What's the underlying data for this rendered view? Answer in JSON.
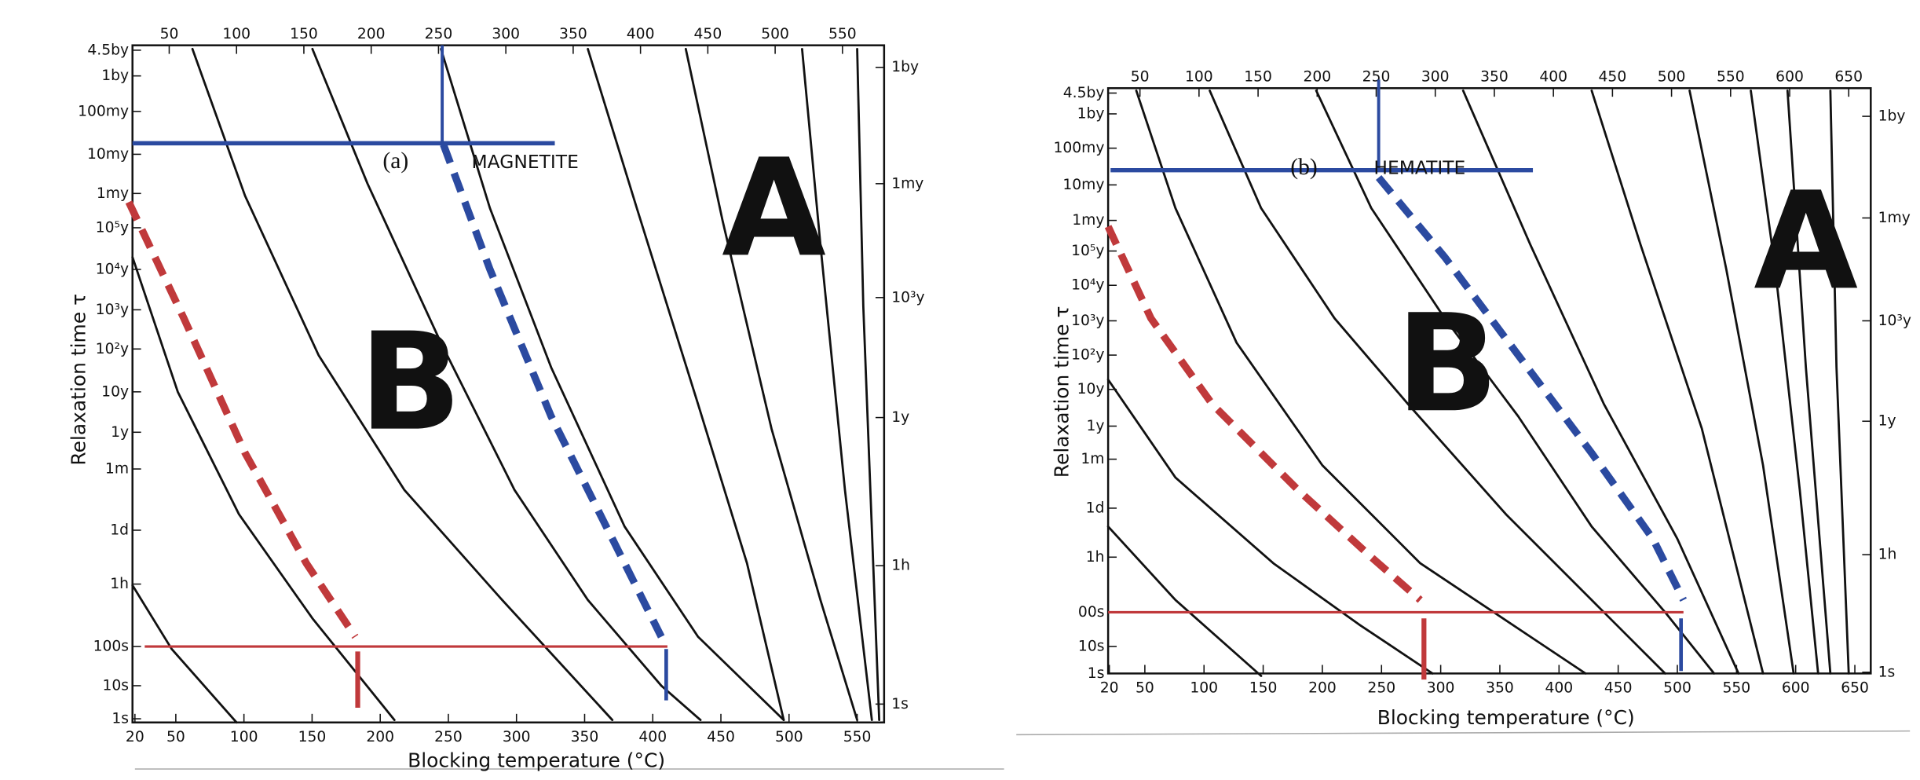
{
  "panels": [
    {
      "label": "(a)",
      "mineral": "MAGNETITE",
      "region_a": "A",
      "region_b": "B",
      "y_axis_title": "Relaxation time τ",
      "x_axis_title": "Blocking temperature (°C)",
      "top_ticks": [
        50,
        100,
        150,
        200,
        250,
        300,
        350,
        400,
        450,
        500,
        550
      ],
      "bottom_ticks": [
        20,
        50,
        100,
        150,
        200,
        250,
        300,
        350,
        400,
        450,
        500,
        550
      ],
      "left_ticks": [
        "4.5by",
        "1by",
        "100my",
        "10my",
        "1my",
        "10⁵y",
        "10⁴y",
        "10³y",
        "10²y",
        "10y",
        "1y",
        "1m",
        "1d",
        "1h",
        "100s",
        "10s",
        "1s"
      ],
      "right_ticks": [
        "1by",
        "1my",
        "10³y",
        "1y",
        "1h",
        "1s"
      ]
    },
    {
      "label": "(b)",
      "mineral": "HEMATITE",
      "region_a": "A",
      "region_b": "B",
      "y_axis_title": "Relaxation time τ",
      "x_axis_title": "Blocking temperature (°C)",
      "top_ticks": [
        50,
        100,
        150,
        200,
        250,
        300,
        350,
        400,
        450,
        500,
        550,
        600,
        650
      ],
      "bottom_ticks": [
        20,
        50,
        100,
        150,
        200,
        250,
        300,
        350,
        400,
        450,
        500,
        550,
        600,
        650
      ],
      "left_ticks": [
        "4.5by",
        "1by",
        "100my",
        "10my",
        "1my",
        "10⁵y",
        "10⁴y",
        "10³y",
        "10²y",
        "10y",
        "1y",
        "1m",
        "1d",
        "1h",
        "00s",
        "10s",
        "1s"
      ],
      "right_ticks": [
        "1by",
        "1my",
        "10³y",
        "1y",
        "1h",
        "1s"
      ]
    }
  ]
}
